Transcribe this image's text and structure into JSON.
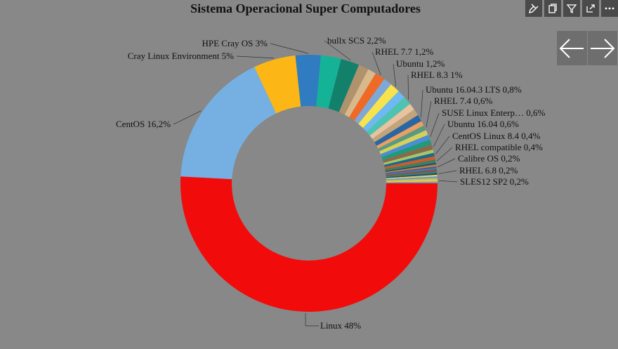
{
  "title": "Sistema Operacional Super Computadores",
  "toolbar": [
    {
      "name": "pin-icon"
    },
    {
      "name": "copy-icon"
    },
    {
      "name": "filter-icon"
    },
    {
      "name": "focus-mode-icon"
    },
    {
      "name": "more-options-icon"
    }
  ],
  "nav": {
    "prev": "←",
    "next": "→"
  },
  "chart_data": {
    "type": "pie",
    "donut": true,
    "title": "Sistema Operacional Super Computadores",
    "slices": [
      {
        "label": "Linux",
        "pct": "48%",
        "value": 48.0,
        "color": "#f20b0b"
      },
      {
        "label": "CentOS",
        "pct": "16,2%",
        "value": 16.2,
        "color": "#76b0e3"
      },
      {
        "label": "Cray Linux Environment",
        "pct": "5%",
        "value": 5.0,
        "color": "#fcb717"
      },
      {
        "label": "HPE Cray OS",
        "pct": "3%",
        "value": 3.0,
        "color": "#2f7cc1"
      },
      {
        "label": "",
        "pct": "",
        "value": 2.4,
        "color": "#14b398"
      },
      {
        "label": "bullx SCS",
        "pct": "2,2%",
        "value": 2.2,
        "color": "#13806b"
      },
      {
        "label": "",
        "pct": "",
        "value": 1.2,
        "color": "#b0926d"
      },
      {
        "label": "",
        "pct": "",
        "value": 1.0,
        "color": "#d8b98b"
      },
      {
        "label": "RHEL 7.7",
        "pct": "1,2%",
        "value": 1.2,
        "color": "#f06925"
      },
      {
        "label": "",
        "pct": "",
        "value": 1.0,
        "color": "#7ea8d9"
      },
      {
        "label": "Ubuntu",
        "pct": "1,2%",
        "value": 1.2,
        "color": "#f7e34d"
      },
      {
        "label": "",
        "pct": "",
        "value": 1.0,
        "color": "#6fb9f2"
      },
      {
        "label": "RHEL 8.3",
        "pct": "1%",
        "value": 1.0,
        "color": "#4fc3b2"
      },
      {
        "label": "",
        "pct": "",
        "value": 0.8,
        "color": "#e8c3a0"
      },
      {
        "label": "",
        "pct": "",
        "value": 0.8,
        "color": "#c1a47b"
      },
      {
        "label": "Ubuntu 16.04.3 LTS",
        "pct": "0,8%",
        "value": 0.8,
        "color": "#2a66a3"
      },
      {
        "label": "",
        "pct": "",
        "value": 0.6,
        "color": "#e9a060"
      },
      {
        "label": "RHEL 7.4",
        "pct": "0,6%",
        "value": 0.6,
        "color": "#5a9a84"
      },
      {
        "label": "",
        "pct": "",
        "value": 0.6,
        "color": "#d4d05a"
      },
      {
        "label": "SUSE Linux Enterp…",
        "pct": "0,6%",
        "value": 0.6,
        "color": "#4a8fd4"
      },
      {
        "label": "",
        "pct": "",
        "value": 0.6,
        "color": "#1d9b7a"
      },
      {
        "label": "Ubuntu 16.04",
        "pct": "0,6%",
        "value": 0.6,
        "color": "#8a6a4a"
      },
      {
        "label": "",
        "pct": "",
        "value": 0.4,
        "color": "#a3c76a"
      },
      {
        "label": "CentOS Linux 8.4",
        "pct": "0,4%",
        "value": 0.4,
        "color": "#1b6a8a"
      },
      {
        "label": "",
        "pct": "",
        "value": 0.4,
        "color": "#d05a2a"
      },
      {
        "label": "RHEL compatible",
        "pct": "0,4%",
        "value": 0.4,
        "color": "#3f7f5f"
      },
      {
        "label": "",
        "pct": "",
        "value": 0.2,
        "color": "#2c4a6a"
      },
      {
        "label": "",
        "pct": "",
        "value": 0.2,
        "color": "#c48a3a"
      },
      {
        "label": "Calibre OS",
        "pct": "0,2%",
        "value": 0.2,
        "color": "#5a5a8a"
      },
      {
        "label": "",
        "pct": "",
        "value": 0.2,
        "color": "#3a7ac0"
      },
      {
        "label": "",
        "pct": "",
        "value": 0.2,
        "color": "#9a4a2a"
      },
      {
        "label": "",
        "pct": "",
        "value": 0.2,
        "color": "#2a8a6a"
      },
      {
        "label": "RHEL 6.8",
        "pct": "0,2%",
        "value": 0.2,
        "color": "#2a4a7a"
      },
      {
        "label": "",
        "pct": "",
        "value": 0.2,
        "color": "#e0d060"
      },
      {
        "label": "",
        "pct": "",
        "value": 0.2,
        "color": "#6a9ad0"
      },
      {
        "label": "",
        "pct": "",
        "value": 0.2,
        "color": "#c0c060"
      },
      {
        "label": "SLES12 SP2",
        "pct": "0,2%",
        "value": 0.2,
        "color": "#e6d14a"
      },
      {
        "label": "",
        "pct": "",
        "value": 0.2,
        "color": "#7a9ab0"
      }
    ]
  }
}
